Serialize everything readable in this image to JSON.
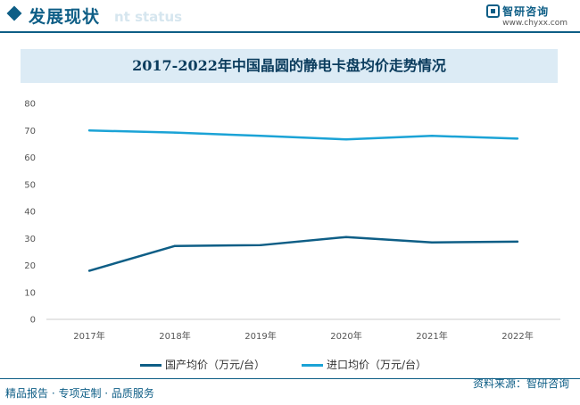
{
  "header": {
    "title": "发展现状",
    "subtitle": "nt status",
    "brand_name": "智研咨询",
    "brand_url": "www.chyxx.com"
  },
  "footer": {
    "left": "精品报告 · 专项定制 · 品质服务",
    "source": "资料来源：智研咨询"
  },
  "colors": {
    "domestic": "#0e5e86",
    "imported": "#1ba3d6",
    "title_bg": "#dcebf5"
  },
  "chart_data": {
    "type": "line",
    "title": "2017-2022年中国晶圆的静电卡盘均价走势情况",
    "categories": [
      "2017年",
      "2018年",
      "2019年",
      "2020年",
      "2021年",
      "2022年"
    ],
    "ylim": [
      0,
      80
    ],
    "yticks": [
      "0",
      "10",
      "20",
      "30",
      "40",
      "50",
      "60",
      "70",
      "80"
    ],
    "grid": false,
    "legend_position": "bottom",
    "series": [
      {
        "name": "国产均价（万元/台）",
        "values": [
          18,
          27.2,
          27.5,
          30.5,
          28.5,
          28.8
        ]
      },
      {
        "name": "进口均价（万元/台）",
        "values": [
          70,
          69.2,
          68,
          66.7,
          68,
          67
        ]
      }
    ]
  }
}
